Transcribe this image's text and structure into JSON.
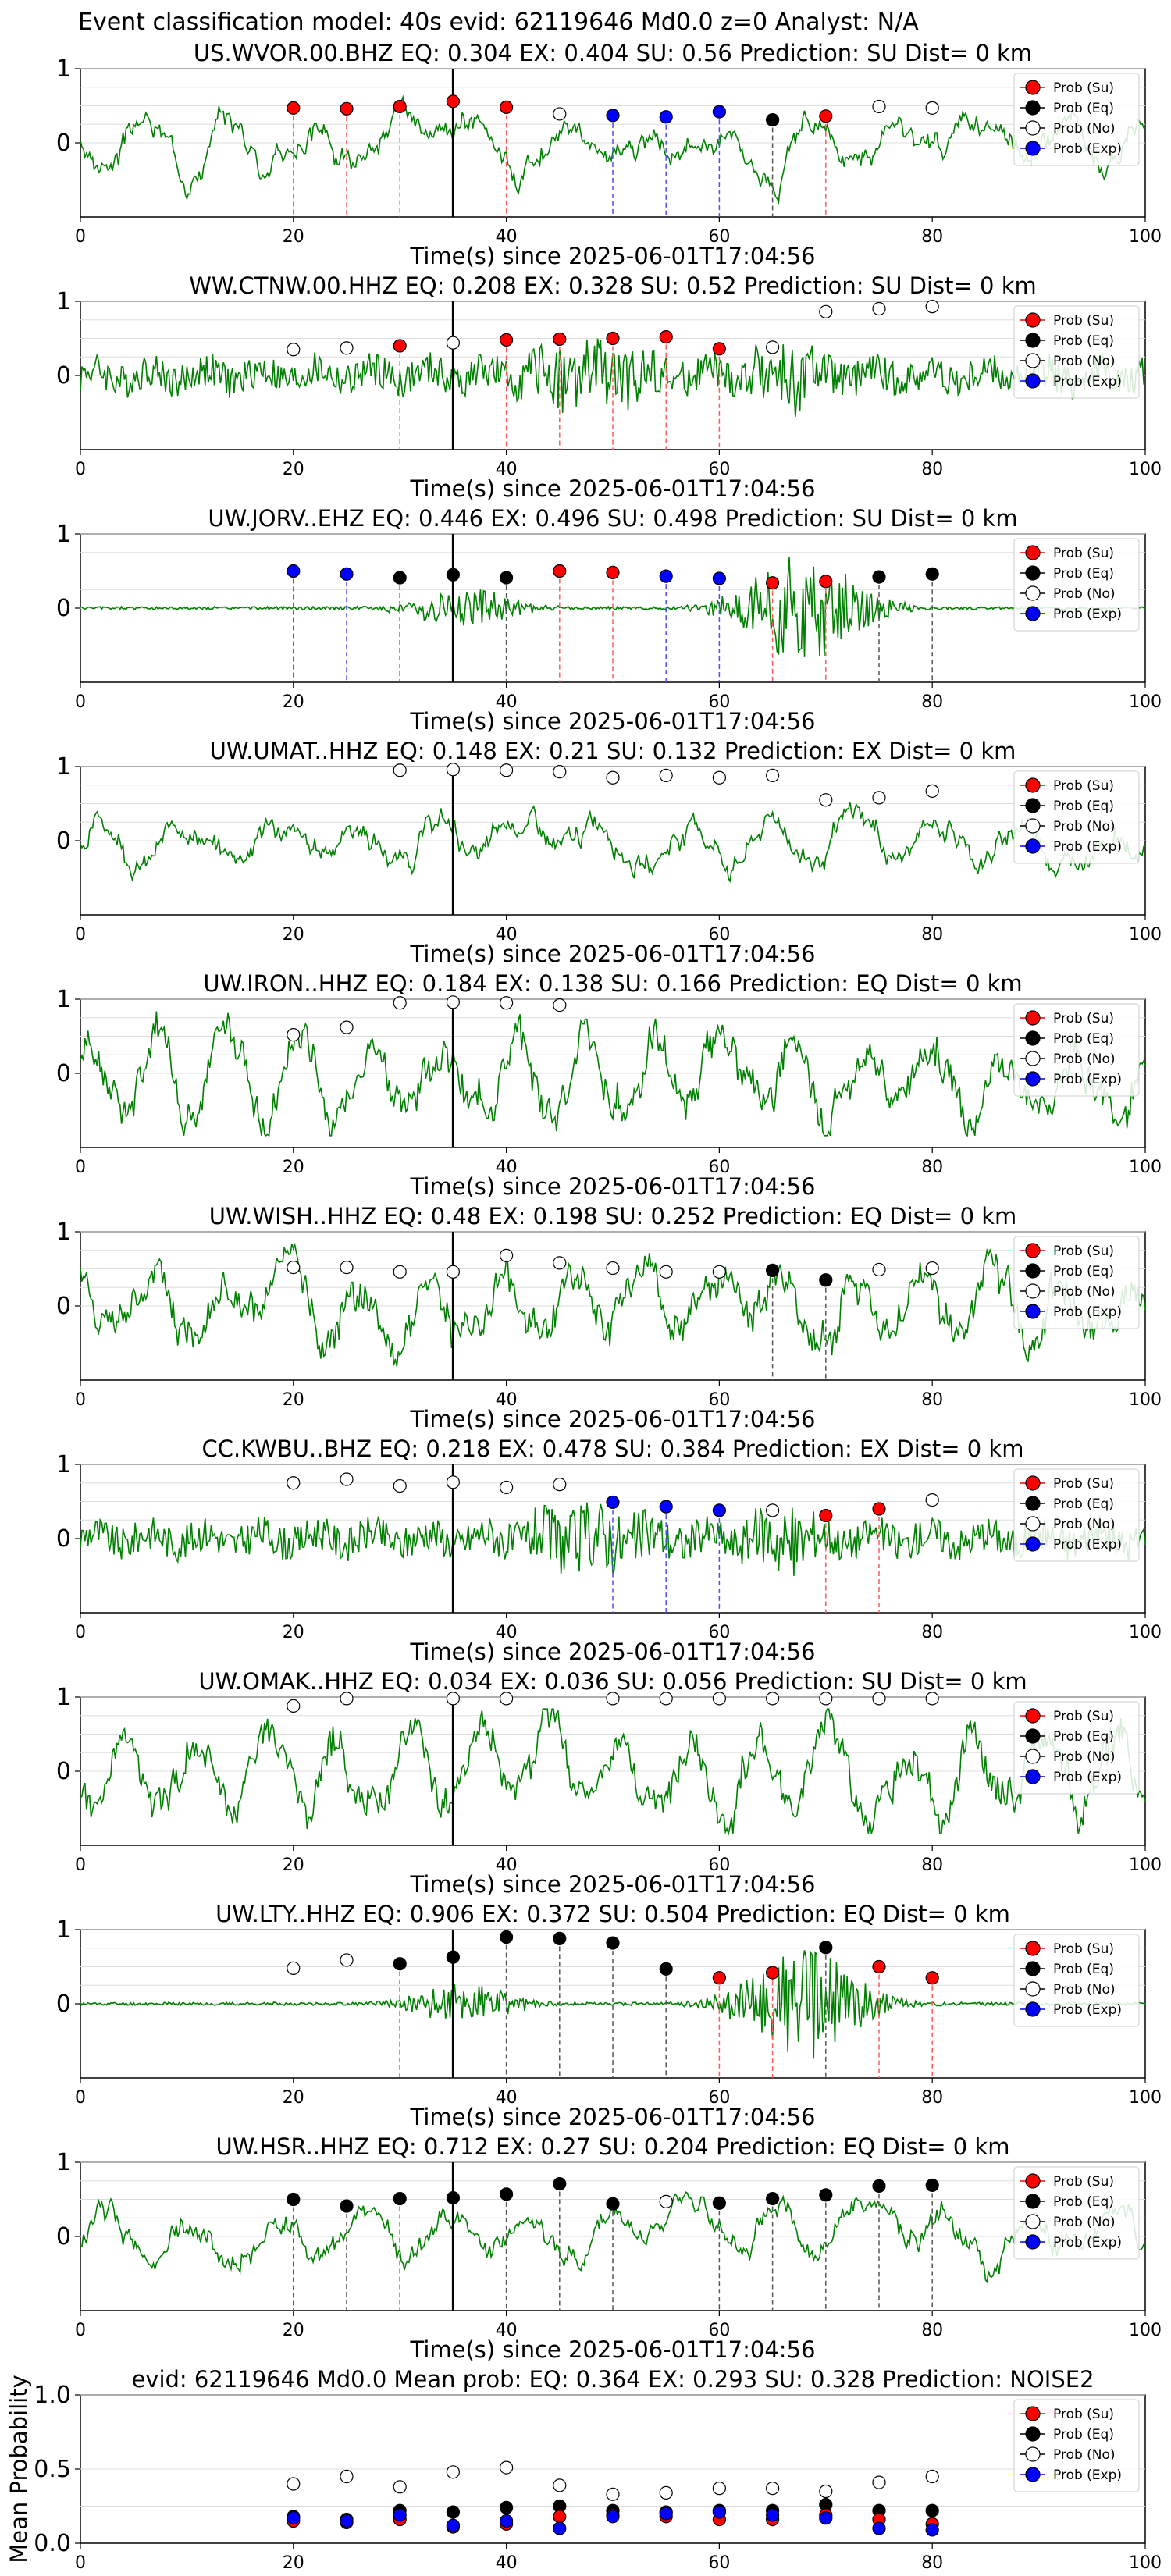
{
  "figure_title": "Event classification model: 40s evid: 62119646 Md0.0 z=0 Analyst: N/A",
  "legend_labels": [
    "Prob (Su)",
    "Prob (Eq)",
    "Prob (No)",
    "Prob (Exp)"
  ],
  "colors": {
    "su": "#ff0000",
    "eq": "#000000",
    "no": "#ffffff",
    "exp": "#0000ff",
    "waveform": "#008000",
    "su_line": "#ff5a5a",
    "eq_line": "#555555",
    "exp_line": "#4d4dff",
    "arrival_line": "#000000"
  },
  "chart_data": [
    {
      "type": "line",
      "title": "US.WVOR.00.BHZ   EQ: 0.304  EX: 0.404  SU: 0.56   Prediction: SU    Dist= 0 km",
      "xlabel": "Time(s) since 2025-06-01T17:04:56",
      "xlim": [
        0,
        100
      ],
      "ylim": [
        -1,
        1
      ],
      "xticks": [
        0,
        20,
        40,
        60,
        80,
        100
      ],
      "yticks": [
        0,
        1
      ],
      "arrival_time": 35,
      "waveform_style": "smooth",
      "points": [
        {
          "t": 20,
          "p": 0.47,
          "c": "su"
        },
        {
          "t": 25,
          "p": 0.46,
          "c": "su"
        },
        {
          "t": 30,
          "p": 0.49,
          "c": "su"
        },
        {
          "t": 35,
          "p": 0.56,
          "c": "su"
        },
        {
          "t": 40,
          "p": 0.48,
          "c": "su"
        },
        {
          "t": 45,
          "p": 0.39,
          "c": "no"
        },
        {
          "t": 50,
          "p": 0.37,
          "c": "exp"
        },
        {
          "t": 55,
          "p": 0.35,
          "c": "exp"
        },
        {
          "t": 60,
          "p": 0.42,
          "c": "exp"
        },
        {
          "t": 65,
          "p": 0.31,
          "c": "eq"
        },
        {
          "t": 70,
          "p": 0.36,
          "c": "su"
        },
        {
          "t": 75,
          "p": 0.49,
          "c": "no"
        },
        {
          "t": 80,
          "p": 0.47,
          "c": "no"
        }
      ]
    },
    {
      "type": "line",
      "title": "WW.CTNW.00.HHZ   EQ: 0.208  EX: 0.328  SU: 0.52   Prediction: SU    Dist= 0 km",
      "xlabel": "Time(s) since 2025-06-01T17:04:56",
      "xlim": [
        0,
        100
      ],
      "ylim": [
        -1,
        1
      ],
      "xticks": [
        0,
        20,
        40,
        60,
        80,
        100
      ],
      "yticks": [
        0,
        1
      ],
      "arrival_time": 35,
      "waveform_style": "noisy",
      "points": [
        {
          "t": 20,
          "p": 0.35,
          "c": "no"
        },
        {
          "t": 25,
          "p": 0.37,
          "c": "no"
        },
        {
          "t": 30,
          "p": 0.4,
          "c": "su"
        },
        {
          "t": 35,
          "p": 0.44,
          "c": "no"
        },
        {
          "t": 40,
          "p": 0.48,
          "c": "su"
        },
        {
          "t": 45,
          "p": 0.49,
          "c": "su"
        },
        {
          "t": 50,
          "p": 0.5,
          "c": "su"
        },
        {
          "t": 55,
          "p": 0.52,
          "c": "su"
        },
        {
          "t": 60,
          "p": 0.36,
          "c": "su"
        },
        {
          "t": 65,
          "p": 0.38,
          "c": "no"
        },
        {
          "t": 70,
          "p": 0.86,
          "c": "no"
        },
        {
          "t": 75,
          "p": 0.9,
          "c": "no"
        },
        {
          "t": 80,
          "p": 0.93,
          "c": "no"
        }
      ]
    },
    {
      "type": "line",
      "title": "UW.JORV..EHZ   EQ: 0.446  EX: 0.496  SU: 0.498   Prediction: SU    Dist= 0 km",
      "xlabel": "Time(s) since 2025-06-01T17:04:56",
      "xlim": [
        0,
        100
      ],
      "ylim": [
        -1,
        1
      ],
      "xticks": [
        0,
        20,
        40,
        60,
        80,
        100
      ],
      "yticks": [
        0,
        1
      ],
      "arrival_time": 35,
      "waveform_style": "quiet",
      "points": [
        {
          "t": 20,
          "p": 0.5,
          "c": "exp"
        },
        {
          "t": 25,
          "p": 0.46,
          "c": "exp"
        },
        {
          "t": 30,
          "p": 0.41,
          "c": "eq"
        },
        {
          "t": 35,
          "p": 0.45,
          "c": "eq"
        },
        {
          "t": 40,
          "p": 0.41,
          "c": "eq"
        },
        {
          "t": 45,
          "p": 0.5,
          "c": "su"
        },
        {
          "t": 50,
          "p": 0.48,
          "c": "su"
        },
        {
          "t": 55,
          "p": 0.43,
          "c": "exp"
        },
        {
          "t": 60,
          "p": 0.4,
          "c": "exp"
        },
        {
          "t": 65,
          "p": 0.34,
          "c": "su"
        },
        {
          "t": 70,
          "p": 0.36,
          "c": "su"
        },
        {
          "t": 75,
          "p": 0.42,
          "c": "eq"
        },
        {
          "t": 80,
          "p": 0.46,
          "c": "eq"
        }
      ]
    },
    {
      "type": "line",
      "title": "UW.UMAT..HHZ   EQ: 0.148  EX: 0.21  SU: 0.132   Prediction: EX    Dist= 0 km",
      "xlabel": "Time(s) since 2025-06-01T17:04:56",
      "xlim": [
        0,
        100
      ],
      "ylim": [
        -1,
        1
      ],
      "xticks": [
        0,
        20,
        40,
        60,
        80,
        100
      ],
      "yticks": [
        0,
        1
      ],
      "arrival_time": 35,
      "waveform_style": "smooth",
      "points": [
        {
          "t": 30,
          "p": 0.95,
          "c": "no"
        },
        {
          "t": 35,
          "p": 0.96,
          "c": "no"
        },
        {
          "t": 40,
          "p": 0.95,
          "c": "no"
        },
        {
          "t": 45,
          "p": 0.93,
          "c": "no"
        },
        {
          "t": 50,
          "p": 0.85,
          "c": "no"
        },
        {
          "t": 55,
          "p": 0.88,
          "c": "no"
        },
        {
          "t": 60,
          "p": 0.85,
          "c": "no"
        },
        {
          "t": 65,
          "p": 0.88,
          "c": "no"
        },
        {
          "t": 70,
          "p": 0.55,
          "c": "no"
        },
        {
          "t": 75,
          "p": 0.58,
          "c": "no"
        },
        {
          "t": 80,
          "p": 0.67,
          "c": "no"
        }
      ]
    },
    {
      "type": "line",
      "title": "UW.IRON..HHZ   EQ: 0.184  EX: 0.138  SU: 0.166   Prediction: EQ    Dist= 0 km",
      "xlabel": "Time(s) since 2025-06-01T17:04:56",
      "xlim": [
        0,
        100
      ],
      "ylim": [
        -1,
        1
      ],
      "xticks": [
        0,
        20,
        40,
        60,
        80,
        100
      ],
      "yticks": [
        0,
        1
      ],
      "arrival_time": 35,
      "waveform_style": "large",
      "points": [
        {
          "t": 20,
          "p": 0.52,
          "c": "no"
        },
        {
          "t": 25,
          "p": 0.62,
          "c": "no"
        },
        {
          "t": 30,
          "p": 0.95,
          "c": "no"
        },
        {
          "t": 35,
          "p": 0.96,
          "c": "no"
        },
        {
          "t": 40,
          "p": 0.95,
          "c": "no"
        },
        {
          "t": 45,
          "p": 0.92,
          "c": "no"
        }
      ]
    },
    {
      "type": "line",
      "title": "UW.WISH..HHZ   EQ: 0.48  EX: 0.198  SU: 0.252   Prediction: EQ    Dist= 0 km",
      "xlabel": "Time(s) since 2025-06-01T17:04:56",
      "xlim": [
        0,
        100
      ],
      "ylim": [
        -1,
        1
      ],
      "xticks": [
        0,
        20,
        40,
        60,
        80,
        100
      ],
      "yticks": [
        0,
        1
      ],
      "arrival_time": 35,
      "waveform_style": "large",
      "points": [
        {
          "t": 20,
          "p": 0.52,
          "c": "no"
        },
        {
          "t": 25,
          "p": 0.52,
          "c": "no"
        },
        {
          "t": 30,
          "p": 0.46,
          "c": "no"
        },
        {
          "t": 35,
          "p": 0.46,
          "c": "no"
        },
        {
          "t": 40,
          "p": 0.68,
          "c": "no"
        },
        {
          "t": 45,
          "p": 0.58,
          "c": "no"
        },
        {
          "t": 50,
          "p": 0.51,
          "c": "no"
        },
        {
          "t": 55,
          "p": 0.46,
          "c": "no"
        },
        {
          "t": 60,
          "p": 0.46,
          "c": "no"
        },
        {
          "t": 65,
          "p": 0.48,
          "c": "eq"
        },
        {
          "t": 70,
          "p": 0.35,
          "c": "eq"
        },
        {
          "t": 75,
          "p": 0.49,
          "c": "no"
        },
        {
          "t": 80,
          "p": 0.51,
          "c": "no"
        }
      ]
    },
    {
      "type": "line",
      "title": "CC.KWBU..BHZ   EQ: 0.218  EX: 0.478  SU: 0.384   Prediction: EX    Dist= 0 km",
      "xlabel": "Time(s) since 2025-06-01T17:04:56",
      "xlim": [
        0,
        100
      ],
      "ylim": [
        -1,
        1
      ],
      "xticks": [
        0,
        20,
        40,
        60,
        80,
        100
      ],
      "yticks": [
        0,
        1
      ],
      "arrival_time": 35,
      "waveform_style": "noisy",
      "points": [
        {
          "t": 20,
          "p": 0.75,
          "c": "no"
        },
        {
          "t": 25,
          "p": 0.8,
          "c": "no"
        },
        {
          "t": 30,
          "p": 0.71,
          "c": "no"
        },
        {
          "t": 35,
          "p": 0.76,
          "c": "no"
        },
        {
          "t": 40,
          "p": 0.69,
          "c": "no"
        },
        {
          "t": 45,
          "p": 0.73,
          "c": "no"
        },
        {
          "t": 50,
          "p": 0.49,
          "c": "exp"
        },
        {
          "t": 55,
          "p": 0.43,
          "c": "exp"
        },
        {
          "t": 60,
          "p": 0.38,
          "c": "exp"
        },
        {
          "t": 65,
          "p": 0.38,
          "c": "no"
        },
        {
          "t": 70,
          "p": 0.31,
          "c": "su"
        },
        {
          "t": 75,
          "p": 0.4,
          "c": "su"
        },
        {
          "t": 80,
          "p": 0.52,
          "c": "no"
        }
      ]
    },
    {
      "type": "line",
      "title": "UW.OMAK..HHZ   EQ: 0.034  EX: 0.036  SU: 0.056   Prediction: SU    Dist= 0 km",
      "xlabel": "Time(s) since 2025-06-01T17:04:56",
      "xlim": [
        0,
        100
      ],
      "ylim": [
        -1,
        1
      ],
      "xticks": [
        0,
        20,
        40,
        60,
        80,
        100
      ],
      "yticks": [
        0,
        1
      ],
      "arrival_time": 35,
      "waveform_style": "large",
      "points": [
        {
          "t": 20,
          "p": 0.88,
          "c": "no"
        },
        {
          "t": 25,
          "p": 0.98,
          "c": "no"
        },
        {
          "t": 35,
          "p": 0.98,
          "c": "no"
        },
        {
          "t": 40,
          "p": 0.98,
          "c": "no"
        },
        {
          "t": 50,
          "p": 0.98,
          "c": "no"
        },
        {
          "t": 55,
          "p": 0.98,
          "c": "no"
        },
        {
          "t": 60,
          "p": 0.98,
          "c": "no"
        },
        {
          "t": 65,
          "p": 0.98,
          "c": "no"
        },
        {
          "t": 70,
          "p": 0.98,
          "c": "no"
        },
        {
          "t": 75,
          "p": 0.98,
          "c": "no"
        },
        {
          "t": 80,
          "p": 0.98,
          "c": "no"
        }
      ]
    },
    {
      "type": "line",
      "title": "UW.LTY..HHZ   EQ: 0.906  EX: 0.372  SU: 0.504   Prediction: EQ    Dist= 0 km",
      "xlabel": "Time(s) since 2025-06-01T17:04:56",
      "xlim": [
        0,
        100
      ],
      "ylim": [
        -1,
        1
      ],
      "xticks": [
        0,
        20,
        40,
        60,
        80,
        100
      ],
      "yticks": [
        0,
        1
      ],
      "arrival_time": 35,
      "waveform_style": "quiet",
      "points": [
        {
          "t": 20,
          "p": 0.48,
          "c": "no"
        },
        {
          "t": 25,
          "p": 0.59,
          "c": "no"
        },
        {
          "t": 30,
          "p": 0.54,
          "c": "eq"
        },
        {
          "t": 35,
          "p": 0.63,
          "c": "eq"
        },
        {
          "t": 40,
          "p": 0.9,
          "c": "eq"
        },
        {
          "t": 45,
          "p": 0.88,
          "c": "eq"
        },
        {
          "t": 50,
          "p": 0.82,
          "c": "eq"
        },
        {
          "t": 55,
          "p": 0.47,
          "c": "eq"
        },
        {
          "t": 60,
          "p": 0.35,
          "c": "su"
        },
        {
          "t": 65,
          "p": 0.42,
          "c": "su"
        },
        {
          "t": 70,
          "p": 0.76,
          "c": "eq"
        },
        {
          "t": 75,
          "p": 0.5,
          "c": "su"
        },
        {
          "t": 80,
          "p": 0.35,
          "c": "su"
        }
      ]
    },
    {
      "type": "line",
      "title": "UW.HSR..HHZ   EQ: 0.712  EX: 0.27  SU: 0.204   Prediction: EQ    Dist= 0 km",
      "xlabel": "Time(s) since 2025-06-01T17:04:56",
      "xlim": [
        0,
        100
      ],
      "ylim": [
        -1,
        1
      ],
      "xticks": [
        0,
        20,
        40,
        60,
        80,
        100
      ],
      "yticks": [
        0,
        1
      ],
      "arrival_time": 35,
      "waveform_style": "smooth",
      "points": [
        {
          "t": 20,
          "p": 0.5,
          "c": "eq"
        },
        {
          "t": 25,
          "p": 0.41,
          "c": "eq"
        },
        {
          "t": 30,
          "p": 0.51,
          "c": "eq"
        },
        {
          "t": 35,
          "p": 0.52,
          "c": "eq"
        },
        {
          "t": 40,
          "p": 0.57,
          "c": "eq"
        },
        {
          "t": 45,
          "p": 0.71,
          "c": "eq"
        },
        {
          "t": 50,
          "p": 0.44,
          "c": "eq"
        },
        {
          "t": 55,
          "p": 0.47,
          "c": "no"
        },
        {
          "t": 60,
          "p": 0.45,
          "c": "eq"
        },
        {
          "t": 65,
          "p": 0.51,
          "c": "eq"
        },
        {
          "t": 70,
          "p": 0.56,
          "c": "eq"
        },
        {
          "t": 75,
          "p": 0.68,
          "c": "eq"
        },
        {
          "t": 80,
          "p": 0.69,
          "c": "eq"
        }
      ]
    },
    {
      "type": "scatter",
      "title": "evid: 62119646   Md0.0   Mean prob:   EQ: 0.364  EX: 0.293  SU: 0.328   Prediction: NOISE2",
      "ylabel": "Mean Probability",
      "xlim": [
        0,
        100
      ],
      "ylim": [
        0,
        1
      ],
      "xticks": [
        0,
        20,
        40,
        60,
        80,
        100
      ],
      "yticks": [
        0.0,
        0.5,
        1.0
      ],
      "x": [
        20,
        25,
        30,
        35,
        40,
        45,
        50,
        55,
        60,
        65,
        70,
        75,
        80
      ],
      "series": [
        {
          "name": "Prob (No)",
          "c": "no",
          "values": [
            0.4,
            0.45,
            0.38,
            0.48,
            0.51,
            0.39,
            0.33,
            0.34,
            0.37,
            0.37,
            0.35,
            0.41,
            0.45
          ]
        },
        {
          "name": "Prob (Eq)",
          "c": "eq",
          "values": [
            0.18,
            0.16,
            0.22,
            0.21,
            0.24,
            0.25,
            0.22,
            0.21,
            0.22,
            0.22,
            0.26,
            0.22,
            0.22
          ]
        },
        {
          "name": "Prob (Su)",
          "c": "su",
          "values": [
            0.15,
            0.14,
            0.16,
            0.11,
            0.13,
            0.18,
            0.19,
            0.18,
            0.16,
            0.16,
            0.19,
            0.16,
            0.13
          ]
        },
        {
          "name": "Prob (Exp)",
          "c": "exp",
          "values": [
            0.17,
            0.15,
            0.19,
            0.12,
            0.15,
            0.1,
            0.18,
            0.2,
            0.21,
            0.19,
            0.17,
            0.1,
            0.09
          ]
        }
      ]
    }
  ]
}
